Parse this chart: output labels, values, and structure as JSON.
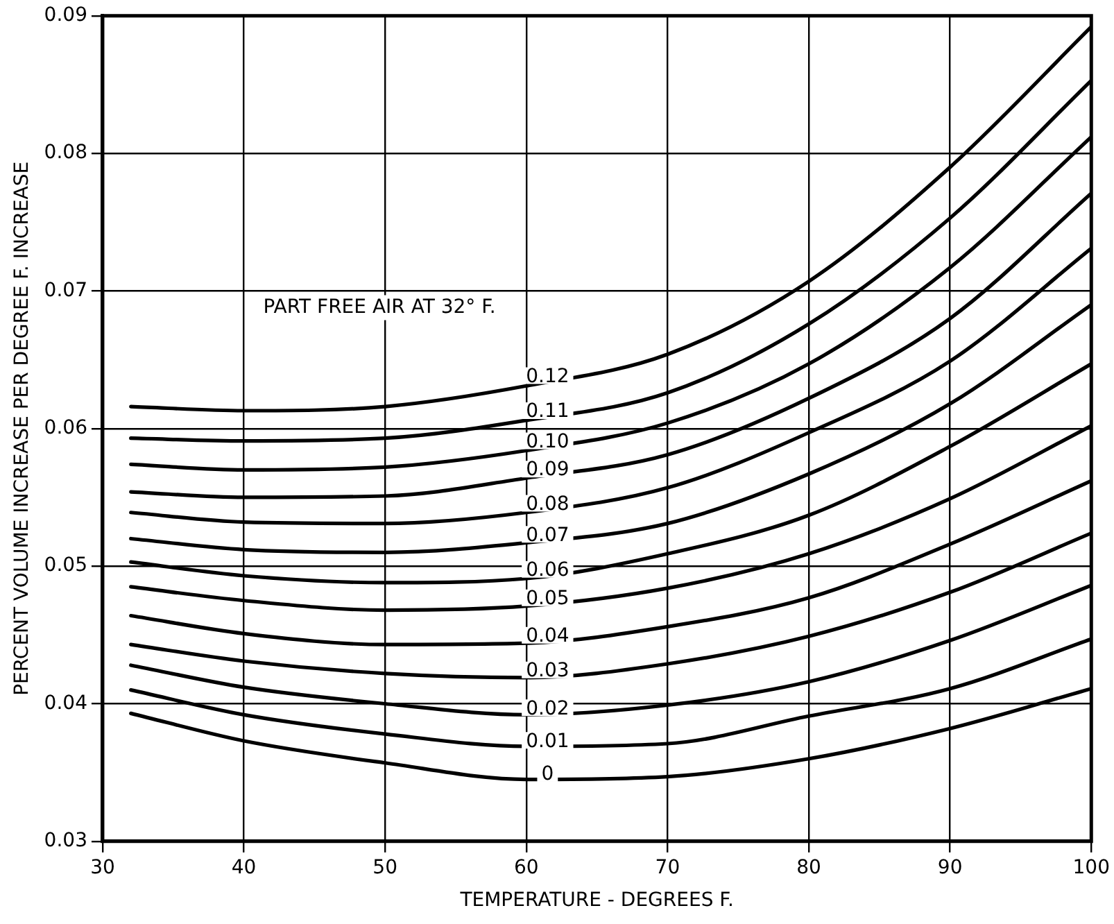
{
  "chart_data": {
    "type": "line",
    "xlabel": "TEMPERATURE - DEGREES F.",
    "ylabel": "PERCENT VOLUME INCREASE PER DEGREE F. INCREASE",
    "legend_title": "PART FREE AIR AT 32° F.",
    "x": [
      32,
      40,
      50,
      60,
      70,
      80,
      90,
      100
    ],
    "xlim": [
      30,
      100
    ],
    "xticks": [
      30,
      40,
      50,
      60,
      70,
      80,
      90,
      100
    ],
    "ylim": [
      0.03,
      0.09
    ],
    "yticks": [
      0.03,
      0.04,
      0.05,
      0.06,
      0.07,
      0.08,
      0.09
    ],
    "grid": true,
    "legend": false,
    "marker": "none",
    "line_style": "solid",
    "series": [
      {
        "name": "0.12",
        "color": "#000000",
        "values": [
          0.0616,
          0.0613,
          0.0616,
          0.0631,
          0.0654,
          0.0707,
          0.079,
          0.0892
        ]
      },
      {
        "name": "0.11",
        "color": "#000000",
        "values": [
          0.0593,
          0.0591,
          0.0593,
          0.0606,
          0.0626,
          0.0676,
          0.0753,
          0.0853
        ]
      },
      {
        "name": "0.10",
        "color": "#000000",
        "values": [
          0.0574,
          0.057,
          0.0572,
          0.0584,
          0.0604,
          0.0647,
          0.0717,
          0.0812
        ]
      },
      {
        "name": "0.09",
        "color": "#000000",
        "values": [
          0.0554,
          0.055,
          0.0551,
          0.0564,
          0.0581,
          0.0622,
          0.068,
          0.0771
        ]
      },
      {
        "name": "0.08",
        "color": "#000000",
        "values": [
          0.0539,
          0.0532,
          0.0531,
          0.0539,
          0.0557,
          0.0597,
          0.0649,
          0.0731
        ]
      },
      {
        "name": "0.07",
        "color": "#000000",
        "values": [
          0.052,
          0.0512,
          0.051,
          0.0517,
          0.0531,
          0.0567,
          0.0618,
          0.069
        ]
      },
      {
        "name": "0.06",
        "color": "#000000",
        "values": [
          0.0503,
          0.0493,
          0.0488,
          0.0491,
          0.0509,
          0.0537,
          0.0587,
          0.0647
        ]
      },
      {
        "name": "0.05",
        "color": "#000000",
        "values": [
          0.0485,
          0.0475,
          0.0468,
          0.0471,
          0.0484,
          0.0509,
          0.0549,
          0.0602
        ]
      },
      {
        "name": "0.04",
        "color": "#000000",
        "values": [
          0.0464,
          0.0451,
          0.0443,
          0.0444,
          0.0456,
          0.0477,
          0.0516,
          0.0562
        ]
      },
      {
        "name": "0.03",
        "color": "#000000",
        "values": [
          0.0443,
          0.0431,
          0.0422,
          0.0419,
          0.0429,
          0.0449,
          0.0481,
          0.0524
        ]
      },
      {
        "name": "0.02",
        "color": "#000000",
        "values": [
          0.0428,
          0.0412,
          0.04,
          0.0392,
          0.0399,
          0.0416,
          0.0446,
          0.0486
        ]
      },
      {
        "name": "0.01",
        "color": "#000000",
        "values": [
          0.041,
          0.0392,
          0.0378,
          0.0369,
          0.0371,
          0.0391,
          0.0411,
          0.0447
        ]
      },
      {
        "name": "0",
        "color": "#000000",
        "values": [
          0.0393,
          0.0373,
          0.0357,
          0.0345,
          0.0347,
          0.036,
          0.0382,
          0.0411
        ]
      }
    ]
  }
}
